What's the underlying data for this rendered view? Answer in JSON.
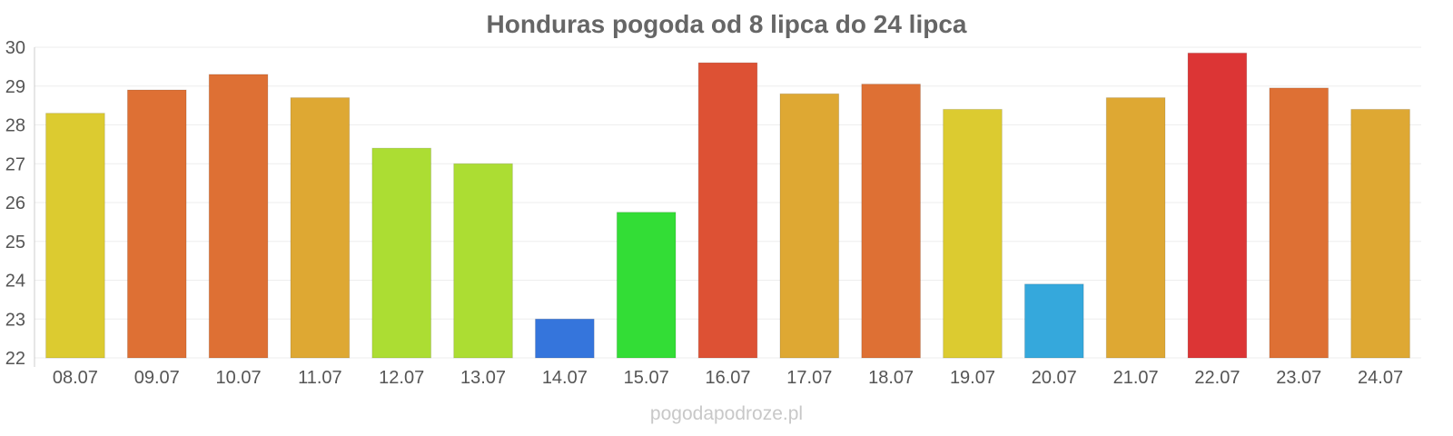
{
  "chart_data": {
    "type": "bar",
    "title": "Honduras pogoda od 8 lipca do 24 lipca",
    "categories": [
      "08.07",
      "09.07",
      "10.07",
      "11.07",
      "12.07",
      "13.07",
      "14.07",
      "15.07",
      "16.07",
      "17.07",
      "18.07",
      "19.07",
      "20.07",
      "21.07",
      "22.07",
      "23.07",
      "24.07"
    ],
    "values": [
      28.3,
      28.9,
      29.3,
      28.7,
      27.4,
      27.0,
      23.0,
      25.75,
      29.6,
      28.8,
      29.05,
      28.4,
      23.9,
      28.7,
      29.85,
      28.95,
      28.4
    ],
    "colors": [
      "#dccb30",
      "#de7034",
      "#de7034",
      "#dea833",
      "#acdd33",
      "#acdd33",
      "#3575dc",
      "#33dd36",
      "#dd5134",
      "#dea833",
      "#de7034",
      "#dccb30",
      "#35a8dc",
      "#dea833",
      "#dc3535",
      "#de7034",
      "#dea833"
    ],
    "yticks": [
      22,
      23,
      24,
      25,
      26,
      27,
      28,
      29,
      30
    ],
    "ylim": [
      22,
      30
    ],
    "xlabel": "",
    "ylabel": "",
    "grid": true,
    "legend": "none"
  },
  "footer": {
    "source_text": "pogodapodroze.pl"
  }
}
